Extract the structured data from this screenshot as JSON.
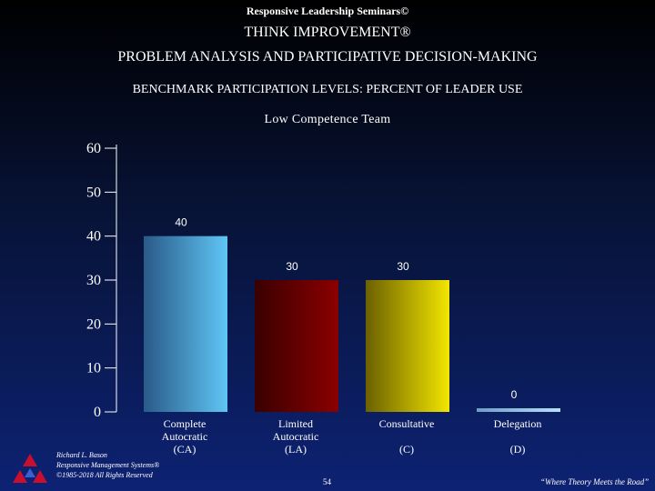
{
  "header": {
    "seminar": "Responsive Leadership Seminars©",
    "title": "THINK IMPROVEMENT®",
    "subtitle": "PROBLEM ANALYSIS AND PARTICIPATIVE DECISION-MAKING",
    "benchmark": "BENCHMARK PARTICIPATION LEVELS:  PERCENT OF LEADER USE"
  },
  "chart_data": {
    "type": "bar",
    "title": "Low Competence Team",
    "xlabel": "",
    "ylabel": "",
    "ylim": [
      0,
      60
    ],
    "yticks": [
      0,
      10,
      20,
      30,
      40,
      50,
      60
    ],
    "grid": false,
    "categories": [
      [
        "Complete",
        "Autocratic",
        "(CA)"
      ],
      [
        "Limited",
        "Autocratic",
        "(LA)"
      ],
      [
        "Consultative",
        "",
        "(C)"
      ],
      [
        "Delegation",
        "",
        "(D)"
      ]
    ],
    "values": [
      40,
      30,
      30,
      0
    ],
    "data_labels": [
      "40",
      "30",
      "30",
      "0"
    ],
    "colors": [
      "#5fc6f5",
      "#8b0000",
      "#f2e600",
      "#9ad0f2"
    ]
  },
  "footer": {
    "author_lines": [
      "Richard L. Bason",
      "Responsive Management Systems®",
      "©1985-2018 All Rights Reserved"
    ],
    "page": "54",
    "tagline": "“Where Theory Meets the Road”"
  },
  "logo_icon": "triangle-logo-icon"
}
